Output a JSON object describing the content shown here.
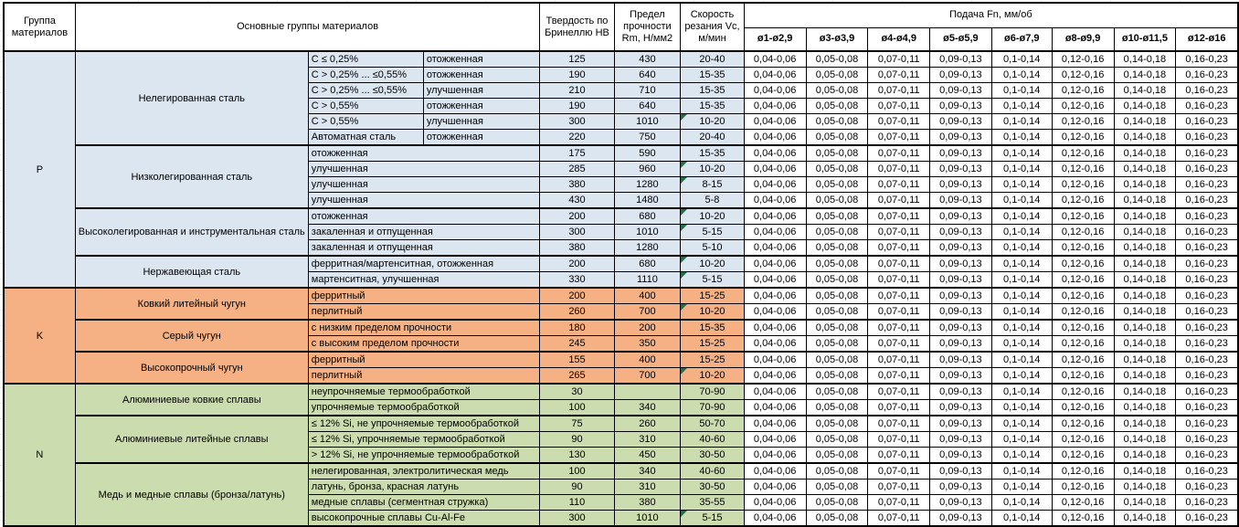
{
  "header": {
    "col_group": "Группа материалов",
    "col_main": "Основные группы материалов",
    "col_hb": "Твердость по Бринеллю HB",
    "col_rm": "Предел прочности Rm, Н/мм2",
    "col_vc": "Скорость резания Vc, м/мин",
    "feed_title": "Подача Fn, мм/об",
    "feed_cols": [
      "ø1-ø2,9",
      "ø3-ø3,9",
      "ø4-ø4,9",
      "ø5-ø5,9",
      "ø6-ø7,9",
      "ø8-ø9,9",
      "ø10-ø11,5",
      "ø12-ø16"
    ]
  },
  "feed_values": [
    "0,04-0,06",
    "0,05-0,08",
    "0,07-0,11",
    "0,09-0,13",
    "0,1-0,14",
    "0,12-0,16",
    "0,14-0,18",
    "0,16-0,23"
  ],
  "colors": {
    "group_p": "#DCE6F1",
    "group_k": "#F5B183",
    "group_n": "#CBDCAE",
    "comment_indicator": "#1E7145",
    "border": "#000000"
  },
  "groups": [
    {
      "code": "P",
      "color": "#DCE6F1",
      "subgroups": [
        {
          "name": "Нелегированная сталь",
          "split": true,
          "rows": [
            {
              "v1": "C ≤ 0,25%",
              "v2": "отожженная",
              "hb": "125",
              "rm": "430",
              "vc": "20-40",
              "note": false
            },
            {
              "v1": "C > 0,25% ... ≤0,55%",
              "v2": "отожженная",
              "hb": "190",
              "rm": "640",
              "vc": "15-35",
              "note": false
            },
            {
              "v1": "C > 0,25% ... ≤0,55%",
              "v2": "улучшенная",
              "hb": "210",
              "rm": "710",
              "vc": "15-35",
              "note": false
            },
            {
              "v1": "C > 0,55%",
              "v2": "отожженная",
              "hb": "190",
              "rm": "640",
              "vc": "15-35",
              "note": false
            },
            {
              "v1": "C > 0,55%",
              "v2": "улучшенная",
              "hb": "300",
              "rm": "1010",
              "vc": "10-20",
              "note": true
            },
            {
              "v1": "Автоматная сталь",
              "v2": "отожженная",
              "hb": "220",
              "rm": "750",
              "vc": "20-40",
              "note": false
            }
          ]
        },
        {
          "name": "Низколегированная сталь",
          "split": false,
          "rows": [
            {
              "v1": "отожженная",
              "hb": "175",
              "rm": "590",
              "vc": "15-35",
              "note": false
            },
            {
              "v1": "улучшенная",
              "hb": "285",
              "rm": "960",
              "vc": "10-20",
              "note": true
            },
            {
              "v1": "улучшенная",
              "hb": "380",
              "rm": "1280",
              "vc": "8-15",
              "note": true
            },
            {
              "v1": "улучшенная",
              "hb": "430",
              "rm": "1480",
              "vc": "5-8",
              "note": false
            }
          ]
        },
        {
          "name": "Высоколегированная и инструментальная сталь",
          "split": false,
          "rows": [
            {
              "v1": "отожженная",
              "hb": "200",
              "rm": "680",
              "vc": "10-20",
              "note": true
            },
            {
              "v1": "закаленная и отпущенная",
              "hb": "300",
              "rm": "1010",
              "vc": "5-15",
              "note": true
            },
            {
              "v1": "закаленная и отпущенная",
              "hb": "380",
              "rm": "1280",
              "vc": "5-10",
              "note": false
            }
          ]
        },
        {
          "name": "Нержавеющая сталь",
          "split": false,
          "rows": [
            {
              "v1": "ферритная/мартенситная, отожженная",
              "hb": "200",
              "rm": "680",
              "vc": "10-20",
              "note": true
            },
            {
              "v1": "мартенситная, улучшенная",
              "hb": "330",
              "rm": "1110",
              "vc": "5-15",
              "note": true
            }
          ]
        }
      ]
    },
    {
      "code": "K",
      "color": "#F5B183",
      "subgroups": [
        {
          "name": "Ковкий литейный чугун",
          "split": false,
          "rows": [
            {
              "v1": "ферритный",
              "hb": "200",
              "rm": "400",
              "vc": "15-25",
              "note": false
            },
            {
              "v1": "перлитный",
              "hb": "260",
              "rm": "700",
              "vc": "10-20",
              "note": true
            }
          ]
        },
        {
          "name": "Серый чугун",
          "split": false,
          "rows": [
            {
              "v1": "с низким пределом прочности",
              "hb": "180",
              "rm": "200",
              "vc": "15-35",
              "note": false
            },
            {
              "v1": "с высоким пределом прочности",
              "hb": "245",
              "rm": "350",
              "vc": "15-25",
              "note": false
            }
          ]
        },
        {
          "name": "Высокопрочный чугун",
          "split": false,
          "rows": [
            {
              "v1": "ферритный",
              "hb": "155",
              "rm": "400",
              "vc": "15-25",
              "note": false
            },
            {
              "v1": "перлитный",
              "hb": "265",
              "rm": "700",
              "vc": "10-20",
              "note": true
            }
          ]
        }
      ]
    },
    {
      "code": "N",
      "color": "#CBDCAE",
      "subgroups": [
        {
          "name": "Алюминиевые ковкие сплавы",
          "split": false,
          "rows": [
            {
              "v1": "неупрочняемые термообработкой",
              "hb": "30",
              "rm": "",
              "vc": "70-90",
              "note": false
            },
            {
              "v1": "упрочняемые термообработкой",
              "hb": "100",
              "rm": "340",
              "vc": "70-90",
              "note": false
            }
          ]
        },
        {
          "name": "Алюминиевые литейные сплавы",
          "split": false,
          "rows": [
            {
              "v1": "≤ 12% Si, не упрочняемые термообработкой",
              "hb": "75",
              "rm": "260",
              "vc": "50-70",
              "note": false
            },
            {
              "v1": "≤ 12% Si, упрочняемые термообработкой",
              "hb": "90",
              "rm": "310",
              "vc": "40-60",
              "note": false
            },
            {
              "v1": "> 12% Si, не упрочняемые термообработкой",
              "hb": "130",
              "rm": "450",
              "vc": "30-50",
              "note": false
            }
          ]
        },
        {
          "name": "Медь и медные сплавы (бронза/латунь)",
          "split": false,
          "rows": [
            {
              "v1": "нелегированная, электролитическая медь",
              "hb": "100",
              "rm": "340",
              "vc": "40-60",
              "note": false
            },
            {
              "v1": "латунь, бронза, красная латунь",
              "hb": "90",
              "rm": "310",
              "vc": "30-50",
              "note": false
            },
            {
              "v1": "медные сплавы (сегментная стружка)",
              "hb": "110",
              "rm": "380",
              "vc": "35-55",
              "note": false
            },
            {
              "v1": "высокопрочные сплавы Cu-Al-Fe",
              "hb": "300",
              "rm": "1010",
              "vc": "5-15",
              "note": true
            }
          ]
        }
      ]
    }
  ]
}
